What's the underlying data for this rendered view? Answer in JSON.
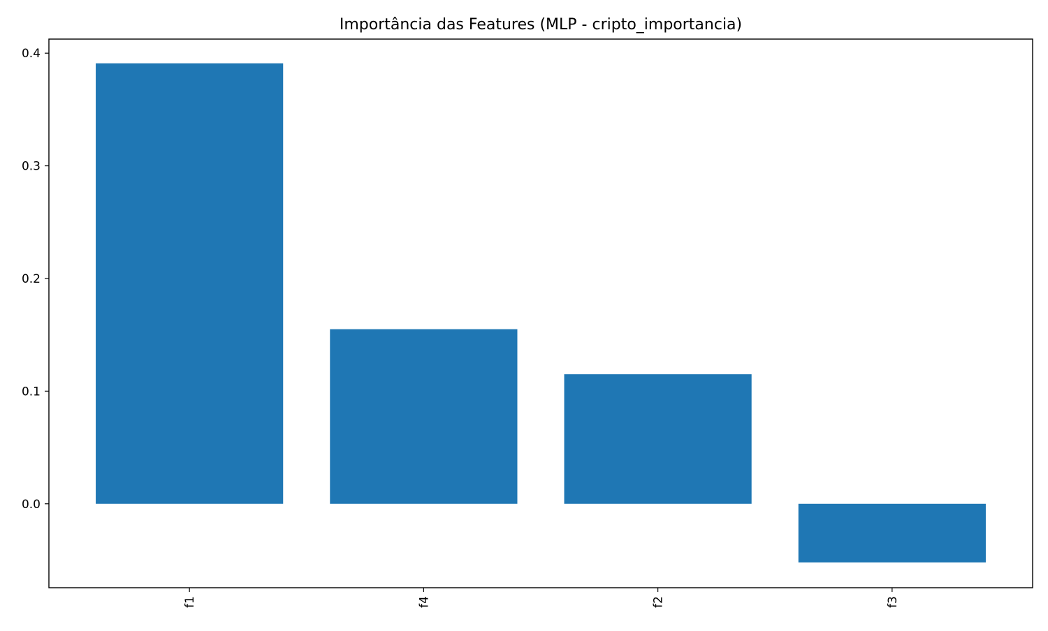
{
  "chart_data": {
    "type": "bar",
    "title": "Importância das Features (MLP - cripto_importancia)",
    "xlabel": "",
    "ylabel": "",
    "categories": [
      "f1",
      "f4",
      "f2",
      "f3"
    ],
    "values": [
      0.391,
      0.155,
      0.115,
      -0.052
    ],
    "ylim": [
      -0.0745,
      0.4125
    ],
    "yticks": [
      0.0,
      0.1,
      0.2,
      0.3,
      0.4
    ],
    "ytick_labels": [
      "0.0",
      "0.1",
      "0.2",
      "0.3",
      "0.4"
    ],
    "x_tick_rotation": "vertical",
    "grid": false,
    "legend": "none",
    "bar_color": "#1f77b4"
  }
}
